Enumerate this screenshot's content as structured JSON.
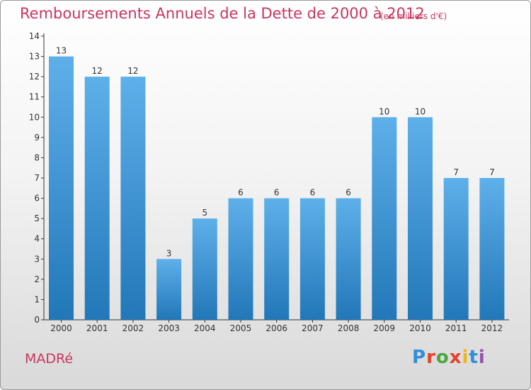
{
  "header": {
    "title": "Remboursements Annuels de la Dette de 2000 à 2012",
    "unit": "(en milliers d'€)"
  },
  "footer": {
    "commune": "MADRé",
    "logo": {
      "text": "Proxiti",
      "letter_colors": [
        "#2f8fd8",
        "#e8402a",
        "#4aa83c",
        "#e8402a",
        "#f0b51c",
        "#2f8fd8",
        "#9b4fb0"
      ]
    }
  },
  "colors": {
    "bar_light": "#5eb0ea",
    "bar_dark": "#2277b8",
    "text": "#333333",
    "axis": "#333333"
  },
  "chart_data": {
    "type": "bar",
    "title": "Remboursements Annuels de la Dette de 2000 à 2012",
    "unit": "(en milliers d'€)",
    "categories": [
      "2000",
      "2001",
      "2002",
      "2003",
      "2004",
      "2005",
      "2006",
      "2007",
      "2008",
      "2009",
      "2010",
      "2011",
      "2012"
    ],
    "values": [
      13,
      12,
      12,
      3,
      5,
      6,
      6,
      6,
      6,
      10,
      10,
      7,
      7
    ],
    "ylim": [
      0,
      14
    ],
    "yticks": [
      0,
      1,
      2,
      3,
      4,
      5,
      6,
      7,
      8,
      9,
      10,
      11,
      12,
      13,
      14
    ],
    "grid": false,
    "legend": "none",
    "data_labels": true
  }
}
